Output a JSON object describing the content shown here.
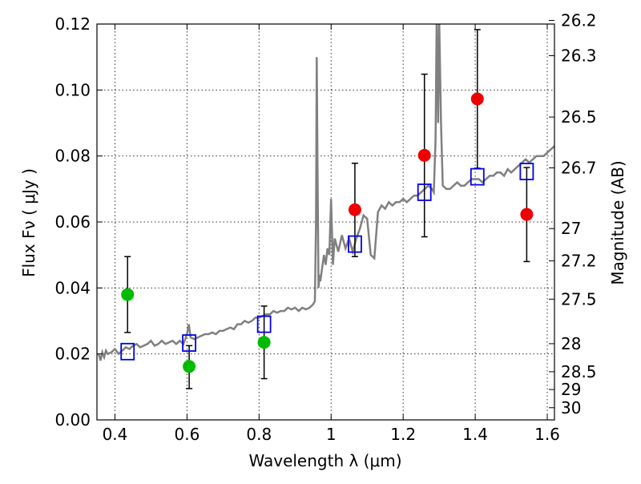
{
  "chart_data": {
    "type": "scatter",
    "xlabel": "Wavelength  λ (μm)",
    "ylabel": "Flux  Fν  ( μJy )",
    "ylabel_right": "Magnitude (AB)",
    "xlim": [
      0.35,
      1.62
    ],
    "ylim": [
      0.0,
      0.12
    ],
    "grid": true,
    "x_ticks": [
      {
        "value": 0.4,
        "label": "0.4"
      },
      {
        "value": 0.6,
        "label": "0.6"
      },
      {
        "value": 0.8,
        "label": "0.8"
      },
      {
        "value": 1.0,
        "label": "1"
      },
      {
        "value": 1.2,
        "label": "1.2"
      },
      {
        "value": 1.4,
        "label": "1.4"
      },
      {
        "value": 1.6,
        "label": "1.6"
      }
    ],
    "y_ticks": [
      {
        "value": 0.0,
        "label": "0.00"
      },
      {
        "value": 0.02,
        "label": "0.02"
      },
      {
        "value": 0.04,
        "label": "0.04"
      },
      {
        "value": 0.06,
        "label": "0.06"
      },
      {
        "value": 0.08,
        "label": "0.08"
      },
      {
        "value": 0.1,
        "label": "0.10"
      },
      {
        "value": 0.12,
        "label": "0.12"
      }
    ],
    "right_ticks": [
      {
        "label": "26.2",
        "flux": 0.1211
      },
      {
        "label": "26.3",
        "flux": 0.1104
      },
      {
        "label": "26.5",
        "flux": 0.0918
      },
      {
        "label": "26.7",
        "flux": 0.0764
      },
      {
        "label": "27",
        "flux": 0.058
      },
      {
        "label": "27.2",
        "flux": 0.0482
      },
      {
        "label": "27.5",
        "flux": 0.0366
      },
      {
        "label": "28",
        "flux": 0.0231
      },
      {
        "label": "28.5",
        "flux": 0.0146
      },
      {
        "label": "29",
        "flux": 0.0092
      },
      {
        "label": "30",
        "flux": 0.0037
      }
    ],
    "model_spectrum": {
      "color": "#808080",
      "x": [
        0.355,
        0.36,
        0.365,
        0.37,
        0.375,
        0.38,
        0.39,
        0.4,
        0.41,
        0.42,
        0.43,
        0.44,
        0.45,
        0.46,
        0.47,
        0.48,
        0.49,
        0.5,
        0.51,
        0.52,
        0.53,
        0.54,
        0.55,
        0.56,
        0.57,
        0.58,
        0.59,
        0.6,
        0.605,
        0.61,
        0.62,
        0.63,
        0.64,
        0.65,
        0.66,
        0.67,
        0.68,
        0.69,
        0.7,
        0.71,
        0.72,
        0.73,
        0.74,
        0.75,
        0.76,
        0.77,
        0.78,
        0.79,
        0.8,
        0.81,
        0.82,
        0.83,
        0.84,
        0.85,
        0.86,
        0.87,
        0.88,
        0.89,
        0.9,
        0.91,
        0.92,
        0.93,
        0.94,
        0.95,
        0.955,
        0.958,
        0.96,
        0.962,
        0.965,
        0.968,
        0.97,
        0.975,
        0.98,
        0.985,
        0.99,
        0.995,
        1.0,
        1.005,
        1.01,
        1.02,
        1.03,
        1.04,
        1.05,
        1.06,
        1.07,
        1.08,
        1.09,
        1.1,
        1.11,
        1.12,
        1.13,
        1.14,
        1.15,
        1.16,
        1.17,
        1.18,
        1.19,
        1.2,
        1.21,
        1.22,
        1.23,
        1.24,
        1.25,
        1.26,
        1.27,
        1.28,
        1.285,
        1.29,
        1.293,
        1.297,
        1.3,
        1.305,
        1.31,
        1.32,
        1.33,
        1.34,
        1.35,
        1.36,
        1.37,
        1.38,
        1.39,
        1.4,
        1.41,
        1.42,
        1.43,
        1.44,
        1.45,
        1.46,
        1.47,
        1.48,
        1.49,
        1.5,
        1.51,
        1.52,
        1.53,
        1.54,
        1.55,
        1.56,
        1.57,
        1.58,
        1.59,
        1.6,
        1.61,
        1.62
      ],
      "y": [
        0.02,
        0.018,
        0.0205,
        0.019,
        0.021,
        0.02,
        0.0205,
        0.0215,
        0.02,
        0.021,
        0.022,
        0.0215,
        0.0225,
        0.023,
        0.022,
        0.0225,
        0.023,
        0.024,
        0.0225,
        0.023,
        0.024,
        0.023,
        0.0235,
        0.024,
        0.023,
        0.024,
        0.023,
        0.026,
        0.029,
        0.025,
        0.0245,
        0.025,
        0.0255,
        0.026,
        0.026,
        0.0265,
        0.026,
        0.027,
        0.027,
        0.0275,
        0.028,
        0.0275,
        0.029,
        0.029,
        0.03,
        0.0295,
        0.03,
        0.031,
        0.031,
        0.0315,
        0.032,
        0.032,
        0.033,
        0.0325,
        0.033,
        0.033,
        0.034,
        0.0335,
        0.034,
        0.033,
        0.034,
        0.0335,
        0.034,
        0.035,
        0.036,
        0.06,
        0.11,
        0.08,
        0.04,
        0.044,
        0.042,
        0.046,
        0.05,
        0.047,
        0.052,
        0.05,
        0.067,
        0.047,
        0.055,
        0.051,
        0.056,
        0.052,
        0.055,
        0.051,
        0.055,
        0.058,
        0.062,
        0.061,
        0.05,
        0.049,
        0.063,
        0.065,
        0.064,
        0.066,
        0.065,
        0.066,
        0.066,
        0.067,
        0.066,
        0.067,
        0.068,
        0.068,
        0.069,
        0.07,
        0.071,
        0.07,
        0.069,
        0.085,
        0.122,
        0.09,
        0.122,
        0.09,
        0.071,
        0.07,
        0.07,
        0.071,
        0.072,
        0.071,
        0.071,
        0.072,
        0.073,
        0.073,
        0.073,
        0.072,
        0.073,
        0.074,
        0.074,
        0.075,
        0.075,
        0.074,
        0.076,
        0.075,
        0.076,
        0.077,
        0.078,
        0.079,
        0.078,
        0.079,
        0.08,
        0.08,
        0.08,
        0.081,
        0.082,
        0.083
      ]
    },
    "series": [
      {
        "marker": "circle",
        "color": "#00bb00",
        "points": [
          {
            "x": 0.435,
            "y": 0.038,
            "yerr_low": 0.0265,
            "yerr_high": 0.0495
          },
          {
            "x": 0.606,
            "y": 0.0162,
            "yerr_low": 0.0095,
            "yerr_high": 0.0225
          },
          {
            "x": 0.814,
            "y": 0.0235,
            "yerr_low": 0.0125,
            "yerr_high": 0.0345
          }
        ]
      },
      {
        "marker": "circle",
        "color": "#ee0000",
        "points": [
          {
            "x": 1.066,
            "y": 0.0637,
            "yerr_low": 0.0495,
            "yerr_high": 0.0778
          },
          {
            "x": 1.259,
            "y": 0.0802,
            "yerr_low": 0.0555,
            "yerr_high": 0.1048
          },
          {
            "x": 1.406,
            "y": 0.0973,
            "yerr_low": 0.0763,
            "yerr_high": 0.1183
          },
          {
            "x": 1.543,
            "y": 0.0623,
            "yerr_low": 0.048,
            "yerr_high": 0.0765
          }
        ]
      },
      {
        "marker": "open-square",
        "color": "#0000ee",
        "points": [
          {
            "x": 0.435,
            "y": 0.0207
          },
          {
            "x": 0.606,
            "y": 0.0233
          },
          {
            "x": 0.814,
            "y": 0.029
          },
          {
            "x": 1.066,
            "y": 0.0533
          },
          {
            "x": 1.259,
            "y": 0.069
          },
          {
            "x": 1.406,
            "y": 0.0737
          },
          {
            "x": 1.543,
            "y": 0.0753
          }
        ]
      }
    ]
  }
}
